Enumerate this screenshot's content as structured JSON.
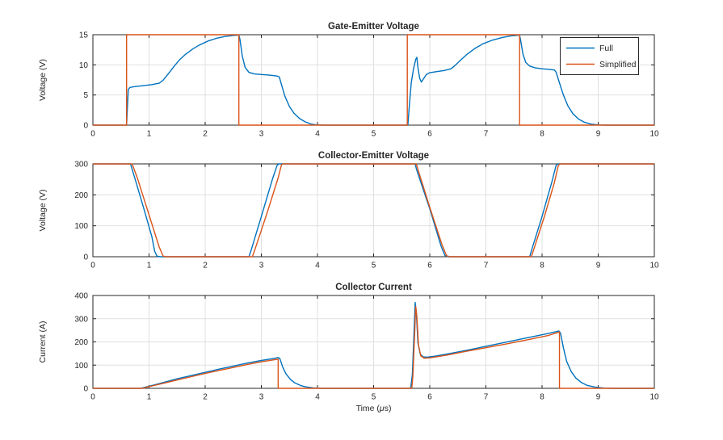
{
  "figure": {
    "background": "#ffffff",
    "colors": {
      "full": "#0072BD",
      "simplified": "#D95319",
      "grid": "#e0e0e0",
      "axis": "#262626"
    }
  },
  "legend": {
    "position": "northeast",
    "entries": [
      {
        "label": "Full",
        "color": "#0072BD"
      },
      {
        "label": "Simplified",
        "color": "#D95319"
      }
    ]
  },
  "chart_data": [
    {
      "type": "line",
      "title": "Gate-Emitter Voltage",
      "xlabel": "",
      "ylabel": "Voltage (V)",
      "xlim": [
        0,
        10
      ],
      "ylim": [
        0,
        15
      ],
      "xticks": [
        0,
        1,
        2,
        3,
        4,
        5,
        6,
        7,
        8,
        9,
        10
      ],
      "yticks": [
        0,
        5,
        10,
        15
      ],
      "grid": true,
      "legend": [
        "Full",
        "Simplified"
      ],
      "series": [
        {
          "name": "Full",
          "color": "#0072BD",
          "points": [
            [
              0,
              0
            ],
            [
              0.6,
              0
            ],
            [
              0.615,
              3.0
            ],
            [
              0.63,
              5.9
            ],
            [
              0.66,
              6.25
            ],
            [
              0.75,
              6.4
            ],
            [
              0.9,
              6.55
            ],
            [
              1.05,
              6.72
            ],
            [
              1.18,
              6.95
            ],
            [
              1.25,
              7.45
            ],
            [
              1.35,
              8.6
            ],
            [
              1.45,
              9.8
            ],
            [
              1.55,
              10.9
            ],
            [
              1.65,
              11.75
            ],
            [
              1.78,
              12.65
            ],
            [
              1.9,
              13.3
            ],
            [
              2.05,
              13.95
            ],
            [
              2.2,
              14.4
            ],
            [
              2.35,
              14.7
            ],
            [
              2.5,
              14.88
            ],
            [
              2.6,
              14.95
            ],
            [
              2.62,
              14.2
            ],
            [
              2.66,
              11.5
            ],
            [
              2.71,
              9.6
            ],
            [
              2.78,
              8.75
            ],
            [
              2.88,
              8.5
            ],
            [
              3.0,
              8.4
            ],
            [
              3.15,
              8.3
            ],
            [
              3.28,
              8.15
            ],
            [
              3.32,
              8.0
            ],
            [
              3.35,
              7.0
            ],
            [
              3.42,
              4.8
            ],
            [
              3.5,
              3.1
            ],
            [
              3.58,
              2.0
            ],
            [
              3.68,
              1.1
            ],
            [
              3.78,
              0.55
            ],
            [
              3.88,
              0.2
            ],
            [
              3.98,
              0.05
            ],
            [
              4.1,
              0
            ],
            [
              5.61,
              0
            ],
            [
              5.63,
              2.5
            ],
            [
              5.67,
              7.0
            ],
            [
              5.71,
              9.3
            ],
            [
              5.75,
              10.9
            ],
            [
              5.77,
              11.25
            ],
            [
              5.79,
              9.5
            ],
            [
              5.82,
              7.8
            ],
            [
              5.85,
              7.15
            ],
            [
              5.89,
              7.7
            ],
            [
              5.94,
              8.4
            ],
            [
              6.0,
              8.7
            ],
            [
              6.1,
              8.85
            ],
            [
              6.25,
              9.05
            ],
            [
              6.38,
              9.35
            ],
            [
              6.45,
              9.9
            ],
            [
              6.55,
              10.8
            ],
            [
              6.67,
              11.8
            ],
            [
              6.8,
              12.7
            ],
            [
              6.95,
              13.5
            ],
            [
              7.1,
              14.05
            ],
            [
              7.3,
              14.55
            ],
            [
              7.45,
              14.8
            ],
            [
              7.6,
              14.95
            ],
            [
              7.62,
              14.0
            ],
            [
              7.66,
              11.8
            ],
            [
              7.71,
              10.4
            ],
            [
              7.78,
              9.8
            ],
            [
              7.88,
              9.5
            ],
            [
              8.0,
              9.35
            ],
            [
              8.12,
              9.25
            ],
            [
              8.22,
              9.15
            ],
            [
              8.25,
              8.8
            ],
            [
              8.3,
              7.3
            ],
            [
              8.38,
              5.0
            ],
            [
              8.46,
              3.2
            ],
            [
              8.55,
              1.9
            ],
            [
              8.65,
              1.0
            ],
            [
              8.75,
              0.5
            ],
            [
              8.87,
              0.18
            ],
            [
              9.0,
              0.04
            ],
            [
              9.1,
              0
            ],
            [
              10,
              0
            ]
          ]
        },
        {
          "name": "Simplified",
          "color": "#D95319",
          "points": [
            [
              0,
              0
            ],
            [
              0.6,
              0
            ],
            [
              0.6,
              15
            ],
            [
              2.6,
              15
            ],
            [
              2.6,
              0
            ],
            [
              5.6,
              0
            ],
            [
              5.6,
              15
            ],
            [
              7.6,
              15
            ],
            [
              7.6,
              0
            ],
            [
              10,
              0
            ]
          ]
        }
      ]
    },
    {
      "type": "line",
      "title": "Collector-Emitter Voltage",
      "xlabel": "",
      "ylabel": "Voltage (V)",
      "xlim": [
        0,
        10
      ],
      "ylim": [
        0,
        300
      ],
      "xticks": [
        0,
        1,
        2,
        3,
        4,
        5,
        6,
        7,
        8,
        9,
        10
      ],
      "yticks": [
        0,
        100,
        200,
        300
      ],
      "grid": true,
      "series": [
        {
          "name": "Full",
          "color": "#0072BD",
          "points": [
            [
              0,
              300
            ],
            [
              0.67,
              300
            ],
            [
              0.75,
              252
            ],
            [
              0.9,
              160
            ],
            [
              1.05,
              65
            ],
            [
              1.1,
              18
            ],
            [
              1.14,
              2
            ],
            [
              1.2,
              0
            ],
            [
              2.78,
              0
            ],
            [
              2.82,
              22
            ],
            [
              3.0,
              130
            ],
            [
              3.2,
              252
            ],
            [
              3.28,
              295
            ],
            [
              3.31,
              300
            ],
            [
              5.74,
              300
            ],
            [
              5.76,
              285
            ],
            [
              5.79,
              268
            ],
            [
              6.0,
              155
            ],
            [
              6.2,
              35
            ],
            [
              6.27,
              4
            ],
            [
              6.33,
              0
            ],
            [
              7.78,
              0
            ],
            [
              7.82,
              25
            ],
            [
              8.0,
              130
            ],
            [
              8.18,
              245
            ],
            [
              8.25,
              295
            ],
            [
              8.28,
              300
            ],
            [
              10,
              300
            ]
          ]
        },
        {
          "name": "Simplified",
          "color": "#D95319",
          "points": [
            [
              0,
              300
            ],
            [
              0.7,
              300
            ],
            [
              0.8,
              250
            ],
            [
              1.0,
              135
            ],
            [
              1.18,
              32
            ],
            [
              1.25,
              2
            ],
            [
              1.3,
              0
            ],
            [
              2.84,
              0
            ],
            [
              2.88,
              20
            ],
            [
              3.1,
              140
            ],
            [
              3.3,
              255
            ],
            [
              3.36,
              298
            ],
            [
              3.39,
              300
            ],
            [
              5.76,
              300
            ],
            [
              5.78,
              288
            ],
            [
              5.81,
              270
            ],
            [
              6.0,
              160
            ],
            [
              6.22,
              38
            ],
            [
              6.3,
              3
            ],
            [
              6.36,
              0
            ],
            [
              7.81,
              0
            ],
            [
              7.85,
              22
            ],
            [
              8.05,
              135
            ],
            [
              8.22,
              240
            ],
            [
              8.29,
              295
            ],
            [
              8.32,
              300
            ],
            [
              10,
              300
            ]
          ]
        }
      ]
    },
    {
      "type": "line",
      "title": "Collector Current",
      "xlabel": "Time (μs)",
      "xlabel_parts": [
        "Time  (",
        "μ",
        "s)"
      ],
      "ylabel": "Current (A)",
      "xlim": [
        0,
        10
      ],
      "ylim": [
        0,
        400
      ],
      "xticks": [
        0,
        1,
        2,
        3,
        4,
        5,
        6,
        7,
        8,
        9,
        10
      ],
      "yticks": [
        0,
        100,
        200,
        300,
        400
      ],
      "grid": true,
      "series": [
        {
          "name": "Full",
          "color": "#0072BD",
          "points": [
            [
              0,
              0
            ],
            [
              0.85,
              0
            ],
            [
              0.95,
              6
            ],
            [
              1.1,
              15
            ],
            [
              1.3,
              28
            ],
            [
              1.5,
              41
            ],
            [
              1.75,
              55
            ],
            [
              2.0,
              69
            ],
            [
              2.25,
              83
            ],
            [
              2.5,
              96
            ],
            [
              2.75,
              109
            ],
            [
              3.0,
              120
            ],
            [
              3.15,
              126
            ],
            [
              3.25,
              130
            ],
            [
              3.3,
              133
            ],
            [
              3.33,
              128
            ],
            [
              3.38,
              92
            ],
            [
              3.44,
              62
            ],
            [
              3.52,
              38
            ],
            [
              3.6,
              23
            ],
            [
              3.7,
              12
            ],
            [
              3.8,
              6
            ],
            [
              3.92,
              2
            ],
            [
              4.05,
              0
            ],
            [
              5.66,
              0
            ],
            [
              5.69,
              60
            ],
            [
              5.72,
              240
            ],
            [
              5.74,
              370
            ],
            [
              5.76,
              330
            ],
            [
              5.79,
              195
            ],
            [
              5.83,
              148
            ],
            [
              5.88,
              136
            ],
            [
              5.95,
              134
            ],
            [
              6.1,
              139
            ],
            [
              6.4,
              152
            ],
            [
              6.7,
              166
            ],
            [
              7.0,
              181
            ],
            [
              7.3,
              196
            ],
            [
              7.6,
              211
            ],
            [
              7.9,
              226
            ],
            [
              8.1,
              236
            ],
            [
              8.25,
              244
            ],
            [
              8.3,
              247
            ],
            [
              8.33,
              238
            ],
            [
              8.38,
              175
            ],
            [
              8.44,
              115
            ],
            [
              8.52,
              72
            ],
            [
              8.6,
              45
            ],
            [
              8.7,
              25
            ],
            [
              8.8,
              13
            ],
            [
              8.95,
              5
            ],
            [
              9.1,
              1
            ],
            [
              9.25,
              0
            ],
            [
              10,
              0
            ]
          ]
        },
        {
          "name": "Simplified",
          "color": "#D95319",
          "points": [
            [
              0,
              0
            ],
            [
              0.9,
              0
            ],
            [
              1.0,
              8
            ],
            [
              1.05,
              10
            ],
            [
              1.3,
              24
            ],
            [
              1.5,
              36
            ],
            [
              1.75,
              50
            ],
            [
              2.0,
              64
            ],
            [
              2.25,
              77
            ],
            [
              2.5,
              90
            ],
            [
              2.75,
              103
            ],
            [
              3.0,
              114
            ],
            [
              3.2,
              122
            ],
            [
              3.3,
              126
            ],
            [
              3.3,
              0
            ],
            [
              5.68,
              0
            ],
            [
              5.7,
              55
            ],
            [
              5.73,
              230
            ],
            [
              5.75,
              352
            ],
            [
              5.77,
              310
            ],
            [
              5.8,
              185
            ],
            [
              5.84,
              140
            ],
            [
              5.9,
              130
            ],
            [
              6.0,
              131
            ],
            [
              6.3,
              143
            ],
            [
              6.6,
              157
            ],
            [
              7.0,
              175
            ],
            [
              7.4,
              193
            ],
            [
              7.8,
              212
            ],
            [
              8.1,
              227
            ],
            [
              8.25,
              238
            ],
            [
              8.31,
              243
            ],
            [
              8.31,
              0
            ],
            [
              10,
              0
            ]
          ]
        }
      ]
    }
  ]
}
